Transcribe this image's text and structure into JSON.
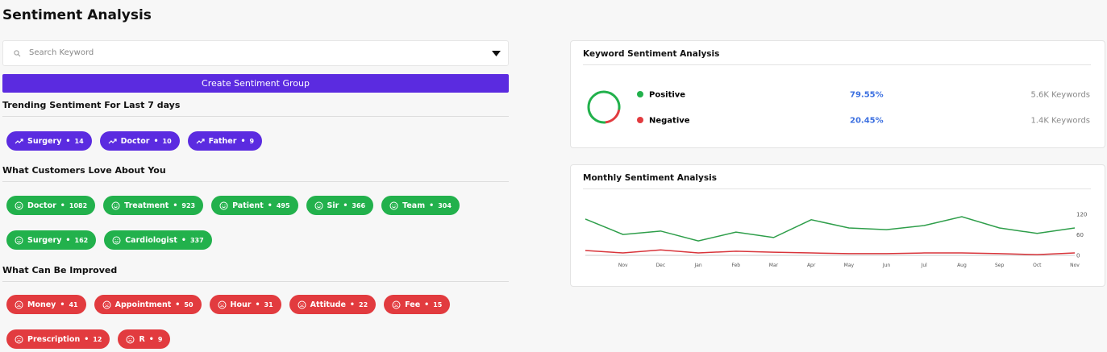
{
  "header": {
    "title": "Sentiment Analysis"
  },
  "search": {
    "placeholder": "Search Keyword"
  },
  "button": {
    "label": "Create Sentiment Group"
  },
  "sections": [
    {
      "title": "Trending Sentiment For Last 7 days",
      "kind": "trend",
      "tags": [
        {
          "name": "Surgery",
          "count": 14
        },
        {
          "name": "Doctor",
          "count": 10
        },
        {
          "name": "Father",
          "count": 9
        }
      ]
    },
    {
      "title": "What Customers Love About You",
      "kind": "love",
      "tags": [
        {
          "name": "Doctor",
          "count": 1082
        },
        {
          "name": "Treatment",
          "count": 923
        },
        {
          "name": "Patient",
          "count": 495
        },
        {
          "name": "Sir",
          "count": 366
        },
        {
          "name": "Team",
          "count": 304
        },
        {
          "name": "Surgery",
          "count": 162
        },
        {
          "name": "Cardiologist",
          "count": 337
        }
      ]
    },
    {
      "title": "What Can Be Improved",
      "kind": "improve",
      "tags": [
        {
          "name": "Money",
          "count": 41
        },
        {
          "name": "Appointment",
          "count": 50
        },
        {
          "name": "Hour",
          "count": 31
        },
        {
          "name": "Attitude",
          "count": 22
        },
        {
          "name": "Fee",
          "count": 15
        },
        {
          "name": "Prescription",
          "count": 12
        },
        {
          "name": "R",
          "count": 9
        }
      ]
    }
  ],
  "keyword_panel": {
    "title": "Keyword Sentiment Analysis",
    "keywords": [
      "5.6K Keywords",
      "1.4K Keywords"
    ]
  },
  "monthly_panel": {
    "title": "Monthly Sentiment Analysis"
  },
  "chart_data": [
    {
      "type": "pie",
      "categories": [
        "Positive",
        "Negative"
      ],
      "values": [
        79.55,
        20.45
      ],
      "value_labels": [
        "79.55%",
        "20.45%"
      ],
      "colors": [
        "#22b14c",
        "#e23b3f"
      ]
    },
    {
      "type": "line",
      "categories": [
        null,
        "Nov",
        "Dec",
        "Jan",
        "Feb",
        "Mar",
        "Apr",
        "May",
        "Jun",
        "Jul",
        "Aug",
        "Sep",
        "Oct",
        "Nov"
      ],
      "series": [
        {
          "color": "#2e9e4a",
          "values": [
            106,
            61,
            71,
            42,
            68,
            52,
            104,
            80,
            75,
            87,
            113,
            80,
            64,
            80
          ]
        },
        {
          "color": "#d8343a",
          "values": [
            14,
            7,
            16,
            7,
            12,
            9,
            7,
            5,
            5,
            7,
            7,
            5,
            2,
            7
          ]
        }
      ],
      "ylim": [
        0,
        120
      ],
      "yticks": [
        0,
        60,
        120
      ],
      "grid": false
    }
  ]
}
